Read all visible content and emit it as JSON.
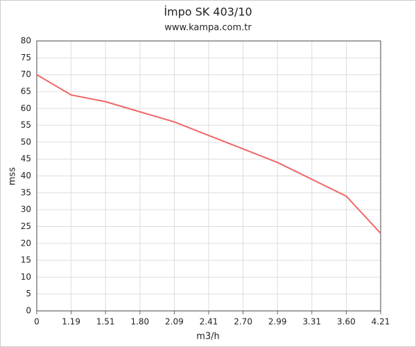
{
  "chart_data": {
    "type": "line",
    "title": "İmpo SK 403/10",
    "subtitle": "www.kampa.com.tr",
    "x_label": "m3/h",
    "y_label": "mss",
    "categories": [
      "0",
      "1.19",
      "1.51",
      "1.80",
      "2.09",
      "2.41",
      "2.70",
      "2.99",
      "3.31",
      "3.60",
      "4.21"
    ],
    "values": [
      70,
      64,
      62,
      59,
      56,
      52,
      48,
      44,
      39,
      34,
      23
    ],
    "color": "#f06666",
    "ylim": [
      0,
      80
    ],
    "yticks": [
      0,
      5,
      10,
      15,
      20,
      25,
      30,
      35,
      40,
      45,
      50,
      55,
      60,
      65,
      70,
      75,
      80
    ],
    "grid": true
  }
}
